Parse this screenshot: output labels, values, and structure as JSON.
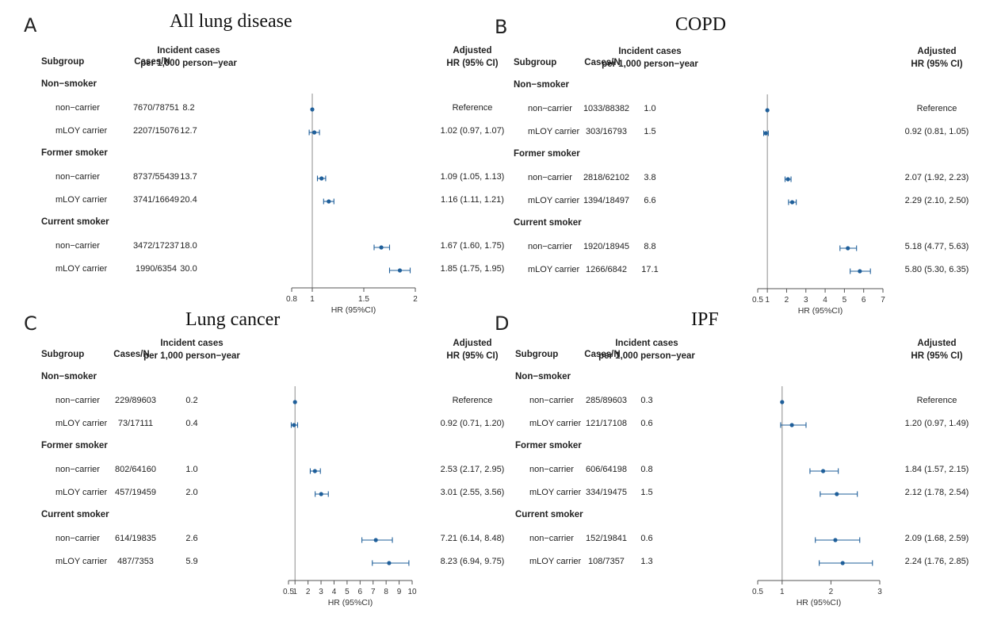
{
  "colors": {
    "point": "#1f5f9a",
    "axis": "#555555",
    "reference_line": "#8c8c8c"
  },
  "chart_data": [
    {
      "id": "A",
      "type": "forest",
      "letter": "A",
      "title": "All lung disease",
      "headers": {
        "subgroup": "Subgroup",
        "cases": "Cases/N",
        "incident_line1": "Incident cases",
        "incident_line2": "per 1,000 person−year",
        "hr_line1": "Adjusted",
        "hr_line2": "HR (95% CI)"
      },
      "xlabel": "HR (95%CI)",
      "xlim": [
        0.8,
        2
      ],
      "ticks": [
        0.8,
        1,
        1.5,
        2
      ],
      "tick_labels": [
        "0.8",
        "1",
        "1.5",
        "2"
      ],
      "reference": 1,
      "groups": [
        {
          "label": "Non−smoker",
          "rows": [
            {
              "label": "non−carrier",
              "cases": "7670/78751",
              "rate": "8.2",
              "hr_text": "Reference",
              "hr": 1,
              "lo": 1,
              "hi": 1
            },
            {
              "label": "mLOY carrier",
              "cases": "2207/15076",
              "rate": "12.7",
              "hr_text": "1.02 (0.97, 1.07)",
              "hr": 1.02,
              "lo": 0.97,
              "hi": 1.07
            }
          ]
        },
        {
          "label": "Former smoker",
          "rows": [
            {
              "label": "non−carrier",
              "cases": "8737/55439",
              "rate": "13.7",
              "hr_text": "1.09 (1.05, 1.13)",
              "hr": 1.09,
              "lo": 1.05,
              "hi": 1.13
            },
            {
              "label": "mLOY carrier",
              "cases": "3741/16649",
              "rate": "20.4",
              "hr_text": "1.16 (1.11, 1.21)",
              "hr": 1.16,
              "lo": 1.11,
              "hi": 1.21
            }
          ]
        },
        {
          "label": "Current smoker",
          "rows": [
            {
              "label": "non−carrier",
              "cases": "3472/17237",
              "rate": "18.0",
              "hr_text": "1.67 (1.60, 1.75)",
              "hr": 1.67,
              "lo": 1.6,
              "hi": 1.75
            },
            {
              "label": "mLOY carrier",
              "cases": "1990/6354",
              "rate": "30.0",
              "hr_text": "1.85 (1.75, 1.95)",
              "hr": 1.85,
              "lo": 1.75,
              "hi": 1.95
            }
          ]
        }
      ]
    },
    {
      "id": "B",
      "type": "forest",
      "letter": "B",
      "title": "COPD",
      "headers": {
        "subgroup": "Subgroup",
        "cases": "Cases/N",
        "incident_line1": "Incident cases",
        "incident_line2": "per 1,000 person−year",
        "hr_line1": "Adjusted",
        "hr_line2": "HR (95% CI)"
      },
      "xlabel": "HR (95%CI)",
      "xlim": [
        0.5,
        7
      ],
      "ticks": [
        0.5,
        1,
        2,
        3,
        4,
        5,
        6,
        7
      ],
      "tick_labels": [
        "0.5",
        "1",
        "2",
        "3",
        "4",
        "5",
        "6",
        "7"
      ],
      "reference": 1,
      "groups": [
        {
          "label": "Non−smoker",
          "rows": [
            {
              "label": "non−carrier",
              "cases": "1033/88382",
              "rate": "1.0",
              "hr_text": "Reference",
              "hr": 1,
              "lo": 1,
              "hi": 1
            },
            {
              "label": "mLOY carrier",
              "cases": "303/16793",
              "rate": "1.5",
              "hr_text": "0.92 (0.81, 1.05)",
              "hr": 0.92,
              "lo": 0.81,
              "hi": 1.05
            }
          ]
        },
        {
          "label": "Former smoker",
          "rows": [
            {
              "label": "non−carrier",
              "cases": "2818/62102",
              "rate": "3.8",
              "hr_text": "2.07 (1.92, 2.23)",
              "hr": 2.07,
              "lo": 1.92,
              "hi": 2.23
            },
            {
              "label": "mLOY carrier",
              "cases": "1394/18497",
              "rate": "6.6",
              "hr_text": "2.29 (2.10, 2.50)",
              "hr": 2.29,
              "lo": 2.1,
              "hi": 2.5
            }
          ]
        },
        {
          "label": "Current smoker",
          "rows": [
            {
              "label": "non−carrier",
              "cases": "1920/18945",
              "rate": "8.8",
              "hr_text": "5.18 (4.77, 5.63)",
              "hr": 5.18,
              "lo": 4.77,
              "hi": 5.63
            },
            {
              "label": "mLOY carrier",
              "cases": "1266/6842",
              "rate": "17.1",
              "hr_text": "5.80 (5.30, 6.35)",
              "hr": 5.8,
              "lo": 5.3,
              "hi": 6.35
            }
          ]
        }
      ]
    },
    {
      "id": "C",
      "type": "forest",
      "letter": "C",
      "title": "Lung cancer",
      "headers": {
        "subgroup": "Subgroup",
        "cases": "Cases/N",
        "incident_line1": "Incident cases",
        "incident_line2": "per 1,000 person−year",
        "hr_line1": "Adjusted",
        "hr_line2": "HR (95% CI)"
      },
      "xlabel": "HR (95%CI)",
      "xlim": [
        0.5,
        10
      ],
      "ticks": [
        0.5,
        1,
        2,
        3,
        4,
        5,
        6,
        7,
        8,
        9,
        10
      ],
      "tick_labels": [
        "0.5",
        "1",
        "2",
        "3",
        "4",
        "5",
        "6",
        "7",
        "8",
        "9",
        "10"
      ],
      "reference": 1,
      "groups": [
        {
          "label": "Non−smoker",
          "rows": [
            {
              "label": "non−carrier",
              "cases": "229/89603",
              "rate": "0.2",
              "hr_text": "Reference",
              "hr": 1,
              "lo": 1,
              "hi": 1
            },
            {
              "label": "mLOY carrier",
              "cases": "73/17111",
              "rate": "0.4",
              "hr_text": "0.92 (0.71, 1.20)",
              "hr": 0.92,
              "lo": 0.71,
              "hi": 1.2
            }
          ]
        },
        {
          "label": "Former smoker",
          "rows": [
            {
              "label": "non−carrier",
              "cases": "802/64160",
              "rate": "1.0",
              "hr_text": "2.53 (2.17, 2.95)",
              "hr": 2.53,
              "lo": 2.17,
              "hi": 2.95
            },
            {
              "label": "mLOY carrier",
              "cases": "457/19459",
              "rate": "2.0",
              "hr_text": "3.01 (2.55, 3.56)",
              "hr": 3.01,
              "lo": 2.55,
              "hi": 3.56
            }
          ]
        },
        {
          "label": "Current smoker",
          "rows": [
            {
              "label": "non−carrier",
              "cases": "614/19835",
              "rate": "2.6",
              "hr_text": "7.21 (6.14, 8.48)",
              "hr": 7.21,
              "lo": 6.14,
              "hi": 8.48
            },
            {
              "label": "mLOY carrier",
              "cases": "487/7353",
              "rate": "5.9",
              "hr_text": "8.23 (6.94, 9.75)",
              "hr": 8.23,
              "lo": 6.94,
              "hi": 9.75
            }
          ]
        }
      ]
    },
    {
      "id": "D",
      "type": "forest",
      "letter": "D",
      "title": "IPF",
      "headers": {
        "subgroup": "Subgroup",
        "cases": "Cases/N",
        "incident_line1": "Incident cases",
        "incident_line2": "per 1,000 person−year",
        "hr_line1": "Adjusted",
        "hr_line2": "HR (95% CI)"
      },
      "xlabel": "HR (95%CI)",
      "xlim": [
        0.5,
        3
      ],
      "ticks": [
        0.5,
        1,
        2,
        3
      ],
      "tick_labels": [
        "0.5",
        "1",
        "2",
        "3"
      ],
      "reference": 1,
      "groups": [
        {
          "label": "Non−smoker",
          "rows": [
            {
              "label": "non−carrier",
              "cases": "285/89603",
              "rate": "0.3",
              "hr_text": "Reference",
              "hr": 1,
              "lo": 1,
              "hi": 1
            },
            {
              "label": "mLOY carrier",
              "cases": "121/17108",
              "rate": "0.6",
              "hr_text": "1.20 (0.97, 1.49)",
              "hr": 1.2,
              "lo": 0.97,
              "hi": 1.49
            }
          ]
        },
        {
          "label": "Former smoker",
          "rows": [
            {
              "label": "non−carrier",
              "cases": "606/64198",
              "rate": "0.8",
              "hr_text": "1.84 (1.57, 2.15)",
              "hr": 1.84,
              "lo": 1.57,
              "hi": 2.15
            },
            {
              "label": "mLOY carrier",
              "cases": "334/19475",
              "rate": "1.5",
              "hr_text": "2.12 (1.78, 2.54)",
              "hr": 2.12,
              "lo": 1.78,
              "hi": 2.54
            }
          ]
        },
        {
          "label": "Current smoker",
          "rows": [
            {
              "label": "non−carrier",
              "cases": "152/19841",
              "rate": "0.6",
              "hr_text": "2.09 (1.68, 2.59)",
              "hr": 2.09,
              "lo": 1.68,
              "hi": 2.59
            },
            {
              "label": "mLOY carrier",
              "cases": "108/7357",
              "rate": "1.3",
              "hr_text": "2.24 (1.76, 2.85)",
              "hr": 2.24,
              "lo": 1.76,
              "hi": 2.85
            }
          ]
        }
      ]
    }
  ]
}
